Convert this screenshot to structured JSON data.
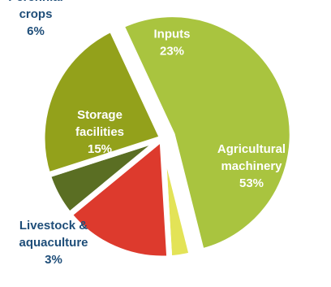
{
  "chart_data": {
    "type": "pie",
    "slices": [
      {
        "label": [
          "Agricultural",
          "machinery"
        ],
        "value": 53,
        "value_label": "53%",
        "color": "#a9c43f",
        "exploded": true,
        "label_style": "inside"
      },
      {
        "label": [
          "Livestock &",
          "aquaculture"
        ],
        "value": 3,
        "value_label": "3%",
        "color": "#e3e357",
        "exploded": false,
        "label_style": "outside"
      },
      {
        "label": [
          "Storage",
          "facilities"
        ],
        "value": 15,
        "value_label": "15%",
        "color": "#dd3a2d",
        "exploded": false,
        "label_style": "inside"
      },
      {
        "label": [
          "Perennial",
          "crops"
        ],
        "value": 6,
        "value_label": "6%",
        "color": "#5a6e23",
        "exploded": false,
        "label_style": "outside"
      },
      {
        "label": [
          "Inputs"
        ],
        "value": 23,
        "value_label": "23%",
        "color": "#93a11b",
        "exploded": false,
        "label_style": "inside"
      }
    ]
  }
}
